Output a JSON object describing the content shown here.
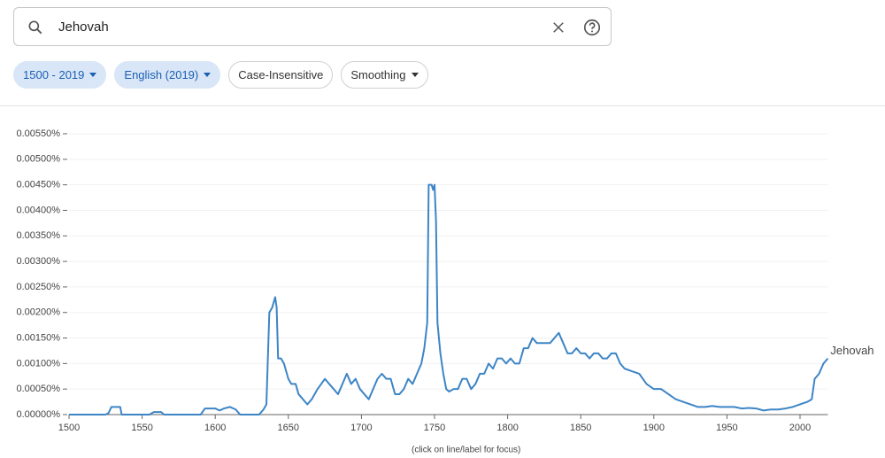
{
  "search": {
    "query": "Jehovah"
  },
  "filters": [
    {
      "label": "1500 - 2019",
      "active": true,
      "dropdown": true
    },
    {
      "label": "English (2019)",
      "active": true,
      "dropdown": true
    },
    {
      "label": "Case-Insensitive",
      "active": false,
      "dropdown": false
    },
    {
      "label": "Smoothing",
      "active": false,
      "dropdown": true
    }
  ],
  "chart_data": {
    "type": "line",
    "note": "(click on line/label for focus)",
    "x": [
      1500,
      1525,
      1527,
      1529,
      1535,
      1536,
      1555,
      1558,
      1563,
      1565,
      1590,
      1593,
      1600,
      1603,
      1606,
      1610,
      1614,
      1617,
      1630,
      1633,
      1635,
      1637,
      1639,
      1641,
      1642,
      1643,
      1645,
      1647,
      1650,
      1652,
      1655,
      1657,
      1660,
      1663,
      1666,
      1670,
      1675,
      1678,
      1681,
      1684,
      1687,
      1690,
      1693,
      1696,
      1699,
      1702,
      1705,
      1708,
      1711,
      1714,
      1717,
      1720,
      1723,
      1726,
      1729,
      1732,
      1735,
      1738,
      1741,
      1743,
      1745,
      1746,
      1748,
      1749,
      1750,
      1751,
      1752,
      1754,
      1756,
      1758,
      1760,
      1763,
      1766,
      1769,
      1772,
      1775,
      1778,
      1781,
      1784,
      1787,
      1790,
      1793,
      1796,
      1799,
      1802,
      1805,
      1808,
      1811,
      1814,
      1817,
      1820,
      1823,
      1826,
      1829,
      1832,
      1835,
      1838,
      1841,
      1844,
      1847,
      1850,
      1853,
      1856,
      1859,
      1862,
      1865,
      1868,
      1871,
      1874,
      1877,
      1880,
      1885,
      1890,
      1895,
      1900,
      1905,
      1910,
      1915,
      1920,
      1925,
      1930,
      1935,
      1940,
      1945,
      1950,
      1955,
      1960,
      1965,
      1970,
      1975,
      1980,
      1985,
      1990,
      1995,
      2000,
      2005,
      2008,
      2010,
      2013,
      2016,
      2019
    ],
    "series": [
      {
        "name": "Jehovah",
        "color": "#3d85c6",
        "values": [
          0,
          0,
          3e-05,
          0.00015,
          0.00015,
          0,
          0,
          5e-05,
          5e-05,
          0,
          0,
          0.00012,
          0.00012,
          8e-05,
          0.00012,
          0.00015,
          0.0001,
          0,
          0,
          0.0001,
          0.0002,
          0.002,
          0.0021,
          0.0023,
          0.0021,
          0.0011,
          0.0011,
          0.001,
          0.0007,
          0.0006,
          0.0006,
          0.0004,
          0.0003,
          0.0002,
          0.0003,
          0.0005,
          0.0007,
          0.0006,
          0.0005,
          0.0004,
          0.0006,
          0.0008,
          0.0006,
          0.0007,
          0.0005,
          0.0004,
          0.0003,
          0.0005,
          0.0007,
          0.0008,
          0.0007,
          0.0007,
          0.0004,
          0.0004,
          0.0005,
          0.0007,
          0.0006,
          0.0008,
          0.001,
          0.0013,
          0.0018,
          0.0045,
          0.0045,
          0.0044,
          0.0045,
          0.0038,
          0.0018,
          0.0012,
          0.0008,
          0.0005,
          0.00045,
          0.0005,
          0.0005,
          0.0007,
          0.0007,
          0.0005,
          0.0006,
          0.0008,
          0.0008,
          0.001,
          0.0009,
          0.0011,
          0.0011,
          0.001,
          0.0011,
          0.001,
          0.001,
          0.0013,
          0.0013,
          0.0015,
          0.0014,
          0.0014,
          0.0014,
          0.0014,
          0.0015,
          0.0016,
          0.0014,
          0.0012,
          0.0012,
          0.0013,
          0.0012,
          0.0012,
          0.0011,
          0.0012,
          0.0012,
          0.0011,
          0.0011,
          0.0012,
          0.0012,
          0.001,
          0.0009,
          0.00085,
          0.0008,
          0.0006,
          0.0005,
          0.0005,
          0.0004,
          0.0003,
          0.00025,
          0.0002,
          0.00015,
          0.00015,
          0.00017,
          0.00015,
          0.00015,
          0.00015,
          0.00012,
          0.00013,
          0.00012,
          8e-05,
          0.0001,
          0.0001,
          0.00012,
          0.00015,
          0.0002,
          0.00025,
          0.0003,
          0.0007,
          0.0008,
          0.001,
          0.0011
        ]
      }
    ],
    "xlim": [
      1500,
      2019
    ],
    "xticks": [
      1500,
      1550,
      1600,
      1650,
      1700,
      1750,
      1800,
      1850,
      1900,
      1950,
      2000
    ],
    "ylim": [
      0,
      0.0055
    ],
    "yticks": [
      {
        "value": 0,
        "label": "0.00000%"
      },
      {
        "value": 0.0005,
        "label": "0.00050%"
      },
      {
        "value": 0.001,
        "label": "0.00100%"
      },
      {
        "value": 0.0015,
        "label": "0.00150%"
      },
      {
        "value": 0.002,
        "label": "0.00200%"
      },
      {
        "value": 0.0025,
        "label": "0.00250%"
      },
      {
        "value": 0.003,
        "label": "0.00300%"
      },
      {
        "value": 0.0035,
        "label": "0.00350%"
      },
      {
        "value": 0.004,
        "label": "0.00400%"
      },
      {
        "value": 0.0045,
        "label": "0.00450%"
      },
      {
        "value": 0.005,
        "label": "0.00500%"
      },
      {
        "value": 0.0055,
        "label": "0.00550%"
      }
    ],
    "grid": true
  }
}
